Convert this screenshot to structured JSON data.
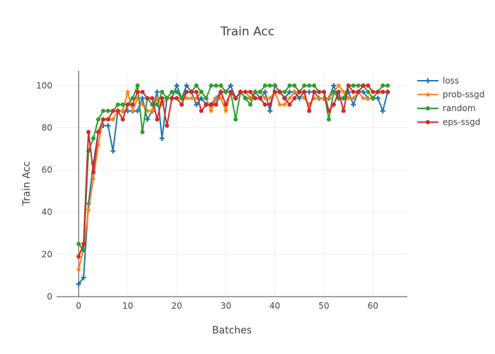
{
  "chart_data": {
    "type": "line",
    "title": "Train Acc",
    "xlabel": "Batches",
    "ylabel": "Train Acc",
    "xlim": [
      -4.5,
      67
    ],
    "ylim": [
      0,
      107
    ],
    "xticks": [
      0,
      10,
      20,
      30,
      40,
      50,
      60
    ],
    "yticks": [
      0,
      20,
      40,
      60,
      80,
      100
    ],
    "grid": true,
    "legend_position": "top-right",
    "series": [
      {
        "name": "loss",
        "color": "#1f77b4",
        "marker": "cross",
        "x": [
          0,
          1,
          2,
          3,
          4,
          5,
          6,
          7,
          8,
          9,
          10,
          11,
          12,
          13,
          14,
          15,
          16,
          17,
          18,
          19,
          20,
          21,
          22,
          23,
          24,
          25,
          26,
          27,
          28,
          29,
          30,
          31,
          32,
          33,
          34,
          35,
          36,
          37,
          38,
          39,
          40,
          41,
          42,
          43,
          44,
          45,
          46,
          47,
          48,
          49,
          50,
          51,
          52,
          53,
          54,
          55,
          56,
          57,
          58,
          59,
          60,
          61,
          62,
          63
        ],
        "y": [
          6,
          9,
          44,
          63,
          78,
          81,
          81,
          69,
          88,
          88,
          88,
          88,
          88,
          94,
          84,
          88,
          97,
          75,
          94,
          94,
          100,
          94,
          100,
          97,
          91,
          94,
          91,
          91,
          94,
          97,
          97,
          100,
          94,
          97,
          94,
          94,
          97,
          94,
          97,
          88,
          100,
          97,
          94,
          97,
          97,
          94,
          97,
          97,
          97,
          94,
          94,
          94,
          100,
          94,
          94,
          97,
          91,
          97,
          97,
          94,
          94,
          94,
          88,
          97
        ]
      },
      {
        "name": "prob-ssgd",
        "color": "#ff7f0e",
        "marker": "star",
        "x": [
          0,
          1,
          2,
          3,
          4,
          5,
          6,
          7,
          8,
          9,
          10,
          11,
          12,
          13,
          14,
          15,
          16,
          17,
          18,
          19,
          20,
          21,
          22,
          23,
          24,
          25,
          26,
          27,
          28,
          29,
          30,
          31,
          32,
          33,
          34,
          35,
          36,
          37,
          38,
          39,
          40,
          41,
          42,
          43,
          44,
          45,
          46,
          47,
          48,
          49,
          50,
          51,
          52,
          53,
          54,
          55,
          56,
          57,
          58,
          59,
          60,
          61,
          62,
          63
        ],
        "y": [
          13,
          22,
          41,
          56,
          72,
          84,
          84,
          84,
          88,
          88,
          97,
          88,
          94,
          91,
          88,
          88,
          94,
          91,
          94,
          94,
          94,
          94,
          94,
          94,
          94,
          97,
          94,
          88,
          94,
          94,
          88,
          97,
          94,
          97,
          97,
          94,
          97,
          97,
          94,
          94,
          97,
          91,
          91,
          94,
          97,
          97,
          94,
          91,
          94,
          94,
          94,
          94,
          97,
          100,
          97,
          94,
          94,
          97,
          94,
          94,
          94,
          97,
          97,
          97
        ]
      },
      {
        "name": "random",
        "color": "#2ca02c",
        "marker": "circle",
        "x": [
          0,
          1,
          2,
          3,
          4,
          5,
          6,
          7,
          8,
          9,
          10,
          11,
          12,
          13,
          14,
          15,
          16,
          17,
          18,
          19,
          20,
          21,
          22,
          23,
          24,
          25,
          26,
          27,
          28,
          29,
          30,
          31,
          32,
          33,
          34,
          35,
          36,
          37,
          38,
          39,
          40,
          41,
          42,
          43,
          44,
          45,
          46,
          47,
          48,
          49,
          50,
          51,
          52,
          53,
          54,
          55,
          56,
          57,
          58,
          59,
          60,
          61,
          62,
          63
        ],
        "y": [
          25,
          22,
          69,
          75,
          84,
          88,
          88,
          88,
          91,
          91,
          91,
          94,
          100,
          78,
          94,
          91,
          91,
          97,
          94,
          97,
          97,
          94,
          97,
          97,
          100,
          97,
          94,
          100,
          100,
          100,
          97,
          97,
          84,
          97,
          94,
          91,
          97,
          97,
          100,
          100,
          100,
          97,
          97,
          100,
          100,
          97,
          100,
          100,
          100,
          97,
          97,
          84,
          97,
          94,
          94,
          100,
          100,
          100,
          100,
          97,
          94,
          97,
          100,
          100
        ]
      },
      {
        "name": "eps-ssgd",
        "color": "#d62728",
        "marker": "circle",
        "x": [
          0,
          1,
          2,
          3,
          4,
          5,
          6,
          7,
          8,
          9,
          10,
          11,
          12,
          13,
          14,
          15,
          16,
          17,
          18,
          19,
          20,
          21,
          22,
          23,
          24,
          25,
          26,
          27,
          28,
          29,
          30,
          31,
          32,
          33,
          34,
          35,
          36,
          37,
          38,
          39,
          40,
          41,
          42,
          43,
          44,
          45,
          46,
          47,
          48,
          49,
          50,
          51,
          52,
          53,
          54,
          55,
          56,
          57,
          58,
          59,
          60,
          61,
          62,
          63
        ],
        "y": [
          19,
          25,
          78,
          59,
          78,
          84,
          84,
          88,
          88,
          84,
          91,
          91,
          97,
          97,
          94,
          94,
          84,
          94,
          81,
          94,
          94,
          91,
          97,
          97,
          97,
          88,
          91,
          91,
          91,
          97,
          91,
          97,
          94,
          97,
          97,
          97,
          94,
          94,
          91,
          91,
          97,
          97,
          94,
          91,
          94,
          97,
          97,
          88,
          97,
          97,
          97,
          88,
          91,
          97,
          88,
          100,
          97,
          97,
          100,
          100,
          97,
          97,
          97,
          97
        ]
      }
    ]
  }
}
